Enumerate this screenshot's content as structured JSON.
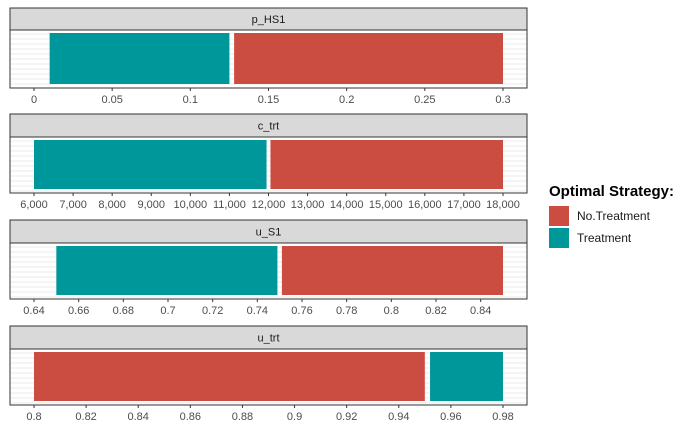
{
  "colors": {
    "No.Treatment": "#CB4D42",
    "Treatment": "#00979A"
  },
  "legend": {
    "title": "Optimal Strategy:",
    "items": [
      {
        "label": "No.Treatment",
        "color": "#CB4D42"
      },
      {
        "label": "Treatment",
        "color": "#00979A"
      }
    ]
  },
  "chart_data": [
    {
      "type": "bar",
      "title": "p_HS1",
      "xlim": [
        0,
        0.3
      ],
      "ticks": [
        0,
        0.05,
        0.1,
        0.15,
        0.2,
        0.25,
        0.3
      ],
      "tick_labels": [
        "0",
        "0.05",
        "0.1",
        "0.15",
        "0.2",
        "0.25",
        "0.3"
      ],
      "segments": [
        {
          "strategy": "Treatment",
          "from": 0.01,
          "to": 0.125
        },
        {
          "strategy": "No.Treatment",
          "from": 0.128,
          "to": 0.3
        }
      ]
    },
    {
      "type": "bar",
      "title": "c_trt",
      "xlim": [
        6000,
        18000
      ],
      "ticks": [
        6000,
        7000,
        8000,
        9000,
        10000,
        11000,
        12000,
        13000,
        14000,
        15000,
        16000,
        17000,
        18000
      ],
      "tick_labels": [
        "6,000",
        "7,000",
        "8,000",
        "9,000",
        "10,000",
        "11,000",
        "12,000",
        "13,000",
        "14,000",
        "15,000",
        "16,000",
        "17,000",
        "18,000"
      ],
      "segments": [
        {
          "strategy": "Treatment",
          "from": 6000,
          "to": 11950
        },
        {
          "strategy": "No.Treatment",
          "from": 12050,
          "to": 18000
        }
      ]
    },
    {
      "type": "bar",
      "title": "u_S1",
      "xlim": [
        0.64,
        0.85
      ],
      "ticks": [
        0.64,
        0.66,
        0.68,
        0.7,
        0.72,
        0.74,
        0.76,
        0.78,
        0.8,
        0.82,
        0.84
      ],
      "tick_labels": [
        "0.64",
        "0.66",
        "0.68",
        "0.7",
        "0.72",
        "0.74",
        "0.76",
        "0.78",
        "0.8",
        "0.82",
        "0.84"
      ],
      "segments": [
        {
          "strategy": "Treatment",
          "from": 0.65,
          "to": 0.749
        },
        {
          "strategy": "No.Treatment",
          "from": 0.751,
          "to": 0.85
        }
      ]
    },
    {
      "type": "bar",
      "title": "u_trt",
      "xlim": [
        0.8,
        0.98
      ],
      "ticks": [
        0.8,
        0.82,
        0.84,
        0.86,
        0.88,
        0.9,
        0.92,
        0.94,
        0.96,
        0.98
      ],
      "tick_labels": [
        "0.8",
        "0.82",
        "0.84",
        "0.86",
        "0.88",
        "0.9",
        "0.92",
        "0.94",
        "0.96",
        "0.98"
      ],
      "segments": [
        {
          "strategy": "No.Treatment",
          "from": 0.8,
          "to": 0.95
        },
        {
          "strategy": "Treatment",
          "from": 0.952,
          "to": 0.98
        }
      ]
    }
  ]
}
